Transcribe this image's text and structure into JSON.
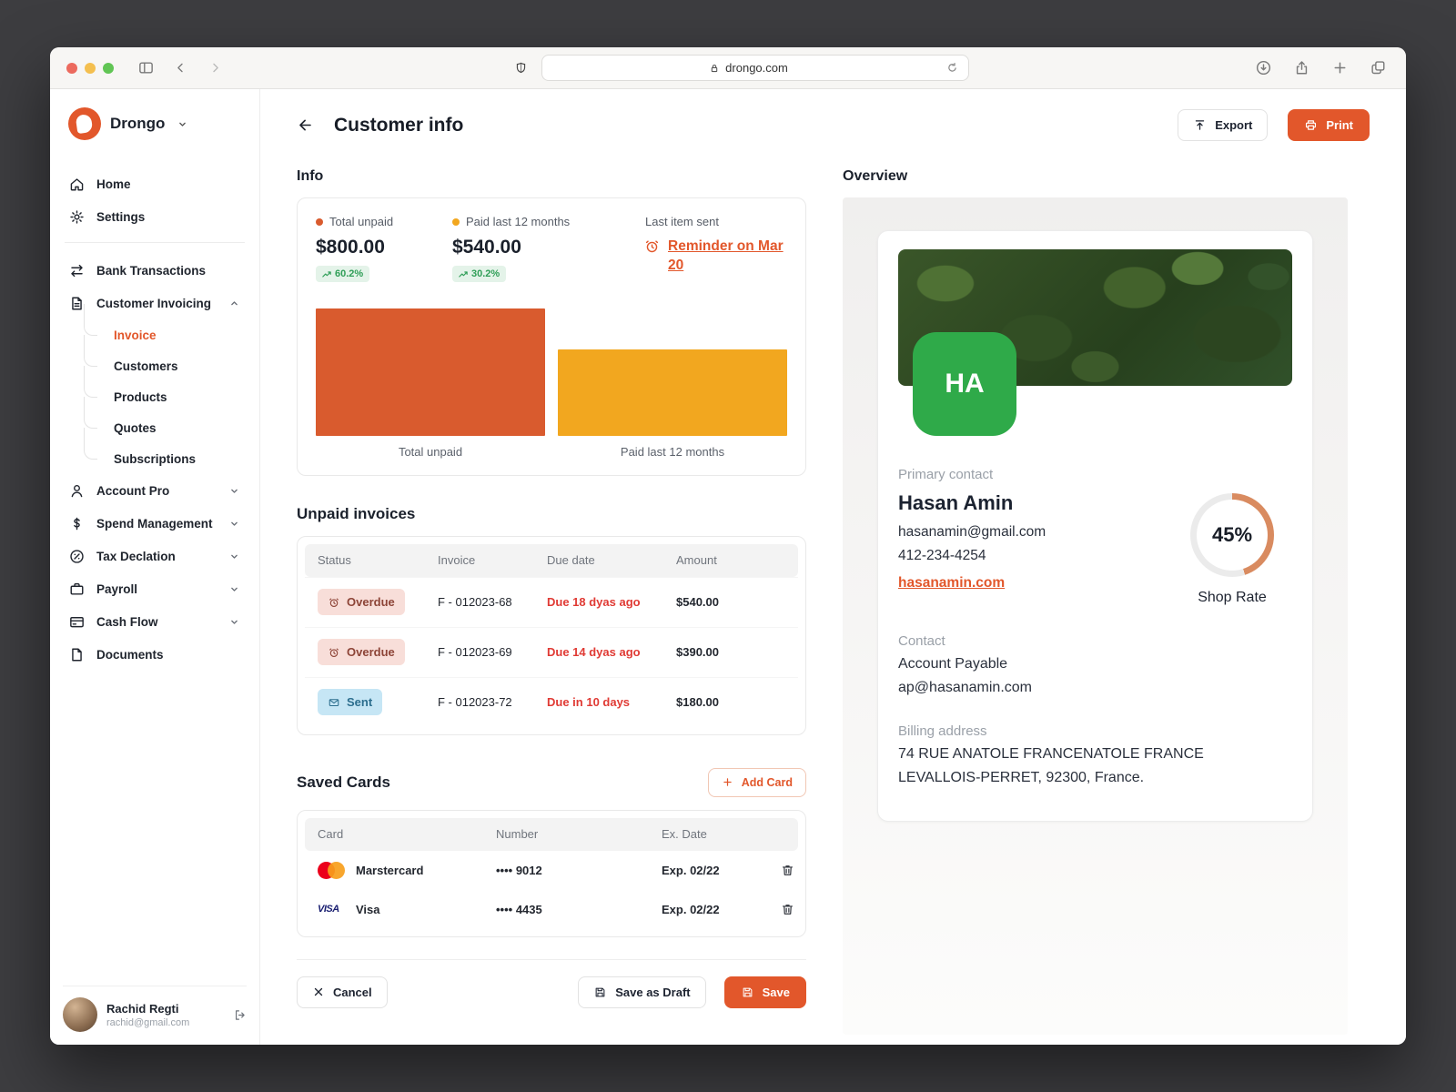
{
  "colors": {
    "accent": "#E2572B",
    "bar_orange": "#D95B2E",
    "bar_amber": "#F2A71F",
    "avatar_green": "#2FAA49",
    "ring_orange": "#D98B60"
  },
  "browser": {
    "url": "drongo.com"
  },
  "sidebar": {
    "brand": "Drongo",
    "nav_top": [
      {
        "label": "Home"
      },
      {
        "label": "Settings"
      }
    ],
    "nav_main": [
      {
        "label": "Bank Transactions"
      },
      {
        "label": "Customer Invoicing"
      }
    ],
    "invoicing_children": [
      {
        "label": "Invoice"
      },
      {
        "label": "Customers"
      },
      {
        "label": "Products"
      },
      {
        "label": "Quotes"
      },
      {
        "label": "Subscriptions"
      }
    ],
    "nav_more": [
      {
        "label": "Account Pro"
      },
      {
        "label": "Spend Management"
      },
      {
        "label": "Tax Declation"
      },
      {
        "label": "Payroll"
      },
      {
        "label": "Cash Flow"
      },
      {
        "label": "Documents"
      }
    ],
    "user": {
      "name": "Rachid Regti",
      "email": "rachid@gmail.com"
    }
  },
  "header": {
    "title": "Customer info",
    "export_label": "Export",
    "print_label": "Print"
  },
  "info": {
    "section_title": "Info",
    "stats": [
      {
        "label": "Total unpaid",
        "value": "$800.00",
        "delta": "60.2%"
      },
      {
        "label": "Paid last 12 months",
        "value": "$540.00",
        "delta": "30.2%"
      }
    ],
    "last_item_label": "Last item sent",
    "reminder_link": "Reminder on Mar 20"
  },
  "chart_data": {
    "type": "bar",
    "categories": [
      "Total unpaid",
      "Paid last 12 months"
    ],
    "values": [
      800,
      540
    ],
    "colors": [
      "#D95B2E",
      "#F2A71F"
    ],
    "ylim": [
      0,
      800
    ],
    "title": "",
    "xlabel": "",
    "ylabel": ""
  },
  "invoices": {
    "section_title": "Unpaid invoices",
    "columns": [
      "Status",
      "Invoice",
      "Due date",
      "Amount"
    ],
    "rows": [
      {
        "status": "Overdue",
        "invoice": "F - 012023-68",
        "due": "Due 18 dyas ago",
        "amount": "$540.00"
      },
      {
        "status": "Overdue",
        "invoice": "F - 012023-69",
        "due": "Due 14 dyas ago",
        "amount": "$390.00"
      },
      {
        "status": "Sent",
        "invoice": "F - 012023-72",
        "due": "Due in 10 days",
        "amount": "$180.00"
      }
    ]
  },
  "cards": {
    "section_title": "Saved Cards",
    "add_label": "Add Card",
    "columns": [
      "Card",
      "Number",
      "Ex. Date"
    ],
    "rows": [
      {
        "name": "Marstercard",
        "number": "•••• 9012",
        "exp": "Exp. 02/22"
      },
      {
        "name": "Visa",
        "number": "•••• 4435",
        "exp": "Exp. 02/22"
      }
    ]
  },
  "footer": {
    "cancel": "Cancel",
    "save_draft": "Save as Draft",
    "save": "Save"
  },
  "overview": {
    "section_title": "Overview",
    "avatar_initials": "HA",
    "primary_contact_label": "Primary contact",
    "name": "Hasan Amin",
    "email": "hasanamin@gmail.com",
    "phone": "412-234-4254",
    "website": "hasanamin.com",
    "shop_rate": {
      "value": "45%",
      "percent": 45,
      "label": "Shop Rate",
      "color": "#D98B60"
    },
    "contact_label": "Contact",
    "contact_name": "Account Payable",
    "contact_email": "ap@hasanamin.com",
    "billing_label": "Billing address",
    "billing_line1": "74 RUE ANATOLE FRANCENATOLE FRANCE",
    "billing_line2": "LEVALLOIS-PERRET, 92300, France."
  }
}
